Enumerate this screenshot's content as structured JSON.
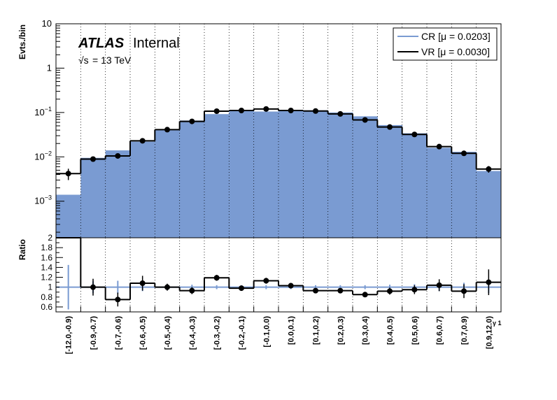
{
  "chart_data": {
    "type": "bar",
    "title": "",
    "atlas_label": "ATLAS",
    "atlas_suffix": "Internal",
    "energy_prefix": "√s",
    "energy_rest": "= 13 TeV",
    "categories": [
      "[-12.0,-0.9)",
      "[-0.9,-0.7)",
      "[-0.7,-0.6)",
      "[-0.6,-0.5)",
      "[-0.5,-0.4)",
      "[-0.4,-0.3)",
      "[-0.3,-0.2)",
      "[-0.2,-0.1)",
      "[-0.1,0.0)",
      "[0.0,0.1)",
      "[0.1,0.2)",
      "[0.2,0.3)",
      "[0.3,0.4)",
      "[0.4,0.5)",
      "[0.5,0.6)",
      "[0.6,0.7)",
      "[0.7,0.9)",
      "[0.9,12.0)"
    ],
    "xlabel": "γ 1",
    "top_panel": {
      "ylabel": "Evts./bin",
      "yscale": "log",
      "ylim": [
        0.00015,
        10
      ],
      "ytick_labels": [
        {
          "v": 0.001,
          "base": "10",
          "exp": "−3"
        },
        {
          "v": 0.01,
          "base": "10",
          "exp": "−2"
        },
        {
          "v": 0.1,
          "base": "10",
          "exp": "−1"
        },
        {
          "v": 1,
          "base": "1",
          "exp": ""
        },
        {
          "v": 10,
          "base": "10",
          "exp": ""
        }
      ],
      "series": [
        {
          "name": "CR [μ = 0.0203]",
          "style": "filled",
          "color": "#7a9bd2",
          "values": [
            0.0014,
            0.0095,
            0.014,
            0.022,
            0.04,
            0.066,
            0.092,
            0.11,
            0.105,
            0.11,
            0.112,
            0.1,
            0.082,
            0.052,
            0.034,
            0.016,
            0.013,
            0.0048
          ]
        },
        {
          "name": "VR [μ = 0.0030]",
          "style": "step+points",
          "color": "#000000",
          "values": [
            0.0042,
            0.0089,
            0.0105,
            0.023,
            0.041,
            0.063,
            0.107,
            0.111,
            0.12,
            0.111,
            0.108,
            0.093,
            0.068,
            0.047,
            0.032,
            0.017,
            0.012,
            0.0053
          ],
          "errors": [
            0.0012,
            0.001,
            0.0013,
            0.002,
            0.003,
            0.004,
            0.006,
            0.006,
            0.007,
            0.006,
            0.006,
            0.006,
            0.005,
            0.004,
            0.003,
            0.0018,
            0.0015,
            0.0009
          ]
        }
      ]
    },
    "ratio_panel": {
      "ylabel": "Ratio",
      "ylim": [
        0.5,
        2.0
      ],
      "ytick_labels": [
        "0.6",
        "0.8",
        "1",
        "1.2",
        "1.4",
        "1.6",
        "1.8",
        "2"
      ],
      "ytick_values": [
        0.6,
        0.8,
        1.0,
        1.2,
        1.4,
        1.6,
        1.8,
        2.0
      ],
      "reference": 1.0,
      "values": [
        3.0,
        1.0,
        0.75,
        1.08,
        1.0,
        0.93,
        1.19,
        0.98,
        1.13,
        1.03,
        0.93,
        0.93,
        0.85,
        0.92,
        0.95,
        1.04,
        0.92,
        1.1
      ],
      "errors": [
        0.8,
        0.17,
        0.14,
        0.15,
        0.07,
        0.07,
        0.06,
        0.05,
        0.06,
        0.05,
        0.05,
        0.05,
        0.05,
        0.07,
        0.09,
        0.12,
        0.14,
        0.26
      ],
      "ref_errors": [
        0.45,
        0.12,
        0.13,
        0.08,
        0.06,
        0.05,
        0.04,
        0.04,
        0.04,
        0.04,
        0.04,
        0.04,
        0.04,
        0.05,
        0.06,
        0.08,
        0.09,
        0.12
      ]
    },
    "legend_position": "top-right",
    "grid": "vertical dotted at bin edges"
  }
}
